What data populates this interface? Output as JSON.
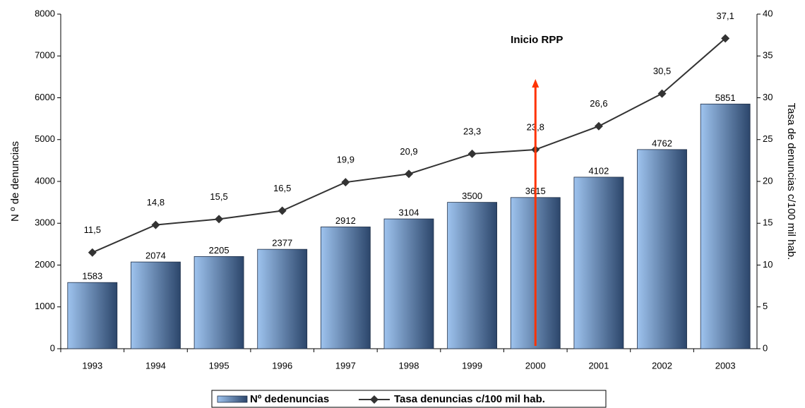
{
  "chart_data": {
    "type": "bar",
    "categories": [
      "1993",
      "1994",
      "1995",
      "1996",
      "1997",
      "1998",
      "1999",
      "2000",
      "2001",
      "2002",
      "2003"
    ],
    "series": [
      {
        "name": "Nº dedenuncias",
        "type": "bar",
        "color": "#9ec3ee",
        "values": [
          1583,
          2074,
          2205,
          2377,
          2912,
          3104,
          3500,
          3615,
          4102,
          4762,
          5851
        ]
      },
      {
        "name": "Tasa denuncias c/100 mil hab.",
        "type": "line",
        "axis": "y2",
        "color": "#333333",
        "values": [
          11.5,
          14.8,
          15.5,
          16.5,
          19.9,
          20.9,
          23.3,
          23.8,
          26.6,
          30.5,
          37.1
        ],
        "value_labels": [
          "11,5",
          "14,8",
          "15,5",
          "16,5",
          "19,9",
          "20,9",
          "23,3",
          "23,8",
          "26,6",
          "30,5",
          "37,1"
        ]
      }
    ],
    "ylabel": "N º de denuncias",
    "y2label": "Tasa de denuncias c/100 mil hab.",
    "ylim": [
      0,
      8000
    ],
    "yticks": [
      0,
      1000,
      2000,
      3000,
      4000,
      5000,
      6000,
      7000,
      8000
    ],
    "y2lim": [
      0,
      40
    ],
    "y2ticks": [
      0,
      5,
      10,
      15,
      20,
      25,
      30,
      35,
      40
    ],
    "annotation": "Inicio RPP",
    "annotation_color": "#ff3300",
    "grid": false,
    "legend": "bottom"
  }
}
